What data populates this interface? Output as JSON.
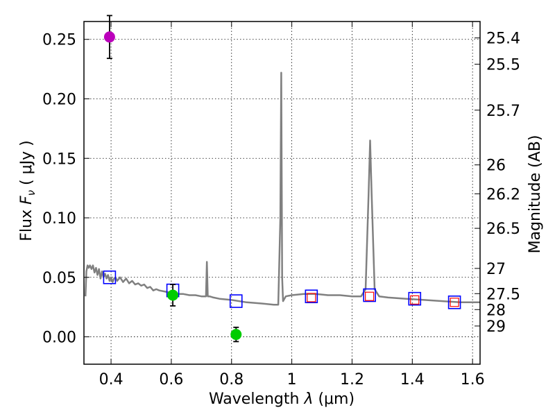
{
  "chart_data": {
    "type": "scatter",
    "xlabel_prefix": "Wavelength  ",
    "xlabel_lambda": "λ",
    "xlabel_suffix": " (μm)",
    "ylabel_prefix": "Flux  ",
    "ylabel_F": "F",
    "ylabel_sub": "ν",
    "ylabel_suffix": "  ( μJy )",
    "y2label": "Magnitude (AB)",
    "xlim": [
      0.31,
      1.625
    ],
    "ylim": [
      -0.023,
      0.265
    ],
    "grid": true,
    "x_ticks": [
      0.4,
      0.6,
      0.8,
      1.0,
      1.2,
      1.4,
      1.6
    ],
    "x_tick_labels": [
      "0.4",
      "0.6",
      "0.8",
      "1",
      "1.2",
      "1.4",
      "1.6"
    ],
    "y_ticks": [
      0.0,
      0.05,
      0.1,
      0.15,
      0.2,
      0.25
    ],
    "y_tick_labels": [
      "0.00",
      "0.05",
      "0.10",
      "0.15",
      "0.20",
      "0.25"
    ],
    "mag_ticks": [
      {
        "label": "25.4",
        "flux": 0.2512
      },
      {
        "label": "25.5",
        "flux": 0.2291
      },
      {
        "label": "25.7",
        "flux": 0.1905
      },
      {
        "label": "26",
        "flux": 0.1445
      },
      {
        "label": "26.2",
        "flux": 0.1202
      },
      {
        "label": "26.5",
        "flux": 0.0912
      },
      {
        "label": "27",
        "flux": 0.0575
      },
      {
        "label": "27.5",
        "flux": 0.0363
      },
      {
        "label": "28",
        "flux": 0.0229
      },
      {
        "label": "29",
        "flux": 0.0091
      }
    ],
    "colors": {
      "model_spectrum": "#808080",
      "model_photometry": "#0000ff",
      "observed_red": "#ff0000",
      "detection_green": "#00cc00",
      "detection_magenta": "#bb00bb",
      "error_bar": "#000000"
    },
    "spectrum": {
      "x": [
        0.315,
        0.318,
        0.322,
        0.326,
        0.33,
        0.335,
        0.34,
        0.345,
        0.35,
        0.355,
        0.36,
        0.365,
        0.37,
        0.375,
        0.38,
        0.385,
        0.39,
        0.395,
        0.4,
        0.405,
        0.41,
        0.415,
        0.42,
        0.43,
        0.44,
        0.45,
        0.46,
        0.47,
        0.48,
        0.49,
        0.5,
        0.51,
        0.52,
        0.53,
        0.54,
        0.55,
        0.56,
        0.58,
        0.6,
        0.62,
        0.64,
        0.66,
        0.68,
        0.7,
        0.715,
        0.718,
        0.721,
        0.724,
        0.727,
        0.74,
        0.76,
        0.8,
        0.85,
        0.9,
        0.94,
        0.955,
        0.962,
        0.965,
        0.968,
        0.971,
        0.98,
        1.0,
        1.04,
        1.08,
        1.12,
        1.16,
        1.2,
        1.23,
        1.245,
        1.255,
        1.26,
        1.265,
        1.275,
        1.29,
        1.32,
        1.38,
        1.44,
        1.5,
        1.56,
        1.625
      ],
      "y": [
        0.034,
        0.055,
        0.06,
        0.058,
        0.06,
        0.057,
        0.06,
        0.054,
        0.058,
        0.052,
        0.057,
        0.049,
        0.055,
        0.05,
        0.053,
        0.049,
        0.052,
        0.047,
        0.05,
        0.046,
        0.049,
        0.05,
        0.047,
        0.05,
        0.046,
        0.049,
        0.045,
        0.047,
        0.044,
        0.045,
        0.043,
        0.044,
        0.041,
        0.042,
        0.039,
        0.04,
        0.039,
        0.038,
        0.037,
        0.036,
        0.036,
        0.035,
        0.035,
        0.034,
        0.034,
        0.063,
        0.034,
        0.034,
        0.034,
        0.033,
        0.032,
        0.031,
        0.029,
        0.028,
        0.027,
        0.027,
        0.1,
        0.222,
        0.05,
        0.03,
        0.034,
        0.035,
        0.036,
        0.036,
        0.035,
        0.035,
        0.034,
        0.034,
        0.04,
        0.12,
        0.165,
        0.12,
        0.04,
        0.034,
        0.033,
        0.032,
        0.031,
        0.03,
        0.029,
        0.029
      ]
    },
    "model_photometry": {
      "x": [
        0.395,
        0.605,
        0.815,
        1.065,
        1.258,
        1.408,
        1.54
      ],
      "y": [
        0.05,
        0.039,
        0.03,
        0.034,
        0.035,
        0.032,
        0.029
      ]
    },
    "observed_red": {
      "x": [
        1.065,
        1.258,
        1.408,
        1.54
      ],
      "y": [
        0.033,
        0.034,
        0.031,
        0.029
      ]
    },
    "detections": [
      {
        "x": 0.395,
        "y": 0.252,
        "yerr": 0.018,
        "color": "#bb00bb"
      },
      {
        "x": 0.605,
        "y": 0.035,
        "yerr": 0.009,
        "color": "#00cc00"
      },
      {
        "x": 0.815,
        "y": 0.002,
        "yerr": 0.006,
        "color": "#00cc00"
      }
    ]
  }
}
